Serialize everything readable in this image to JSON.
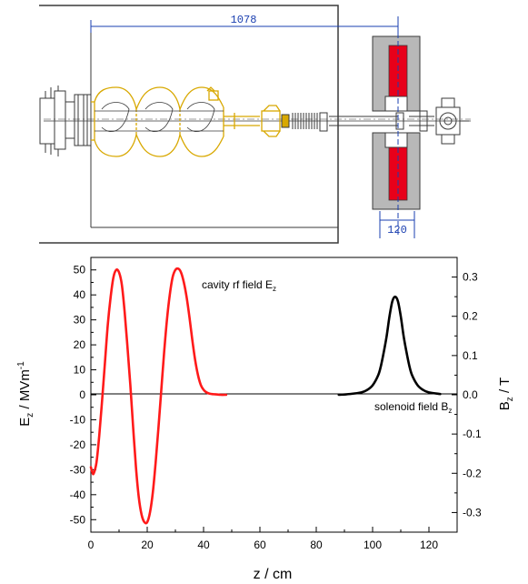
{
  "drawing": {
    "dim_total": "1078",
    "dim_solenoid": "120",
    "colors": {
      "ink": "#3a3a3a",
      "machine": "#d8a800",
      "dimension": "#1a3fb0",
      "coil": "#e8001a",
      "yoke": "#b8b8b8"
    }
  },
  "chart_data": {
    "type": "line",
    "xlabel": "z / cm",
    "ylabel_left": "E_z / MVm^-1",
    "ylabel_right": "B_z / T",
    "xlim": [
      0,
      130
    ],
    "ylim_left": [
      -55,
      55
    ],
    "ylim_right": [
      -0.35,
      0.35
    ],
    "x_ticks": [
      "0",
      "20",
      "40",
      "60",
      "80",
      "100",
      "120"
    ],
    "y_ticks_left": [
      "50",
      "40",
      "30",
      "20",
      "10",
      "0",
      "-10",
      "-20",
      "-30",
      "-40",
      "-50"
    ],
    "y_ticks_right": [
      "0.3",
      "0.2",
      "0.1",
      "0.0",
      "-0.1",
      "-0.2",
      "-0.3"
    ],
    "series": [
      {
        "name": "cavity rf field E_z",
        "axis": "left",
        "color": "#ff1a1a",
        "x": [
          0,
          0.5,
          1,
          2,
          3,
          4,
          5,
          6,
          7,
          8,
          9,
          10,
          11,
          12,
          13,
          14,
          15,
          16,
          17,
          18,
          19,
          20,
          21,
          22,
          23,
          24,
          25,
          26,
          27,
          28,
          29,
          30,
          31,
          32,
          33,
          34,
          35,
          36,
          37,
          38,
          39,
          40,
          41,
          42,
          43,
          44,
          45,
          46,
          48
        ],
        "y": [
          -29,
          -31,
          -31.5,
          -27,
          -16,
          -2,
          13,
          28,
          39,
          47,
          50,
          49,
          44,
          33,
          19,
          4,
          -13,
          -29,
          -41,
          -48,
          -51,
          -51,
          -47,
          -39,
          -27,
          -13,
          2,
          17,
          30,
          40,
          47,
          50,
          50.5,
          49,
          45,
          39,
          31,
          22,
          14,
          8,
          4,
          2,
          1,
          0.5,
          0.3,
          0.2,
          0.1,
          0,
          0
        ]
      },
      {
        "name": "solenoid field B_z",
        "axis": "right",
        "color": "#000000",
        "x": [
          88,
          92,
          96,
          98,
          100,
          102,
          103,
          104,
          105,
          106,
          107,
          108,
          109,
          110,
          111,
          112,
          113,
          114,
          116,
          118,
          120,
          124
        ],
        "y": [
          0,
          0.002,
          0.006,
          0.012,
          0.024,
          0.05,
          0.075,
          0.11,
          0.15,
          0.2,
          0.238,
          0.25,
          0.238,
          0.2,
          0.15,
          0.11,
          0.075,
          0.05,
          0.024,
          0.012,
          0.006,
          0.002
        ]
      }
    ],
    "annotations": {
      "rf_label": "cavity rf field E",
      "rf_sub": "z",
      "sol_label": "solenoid field B",
      "sol_sub": "z"
    },
    "axis_label_parts": {
      "left_main": "E",
      "left_sub": "z",
      "left_unit": " / MVm",
      "left_sup": "-1",
      "right_main": "B",
      "right_sub": "z",
      "right_unit": " / T"
    }
  }
}
